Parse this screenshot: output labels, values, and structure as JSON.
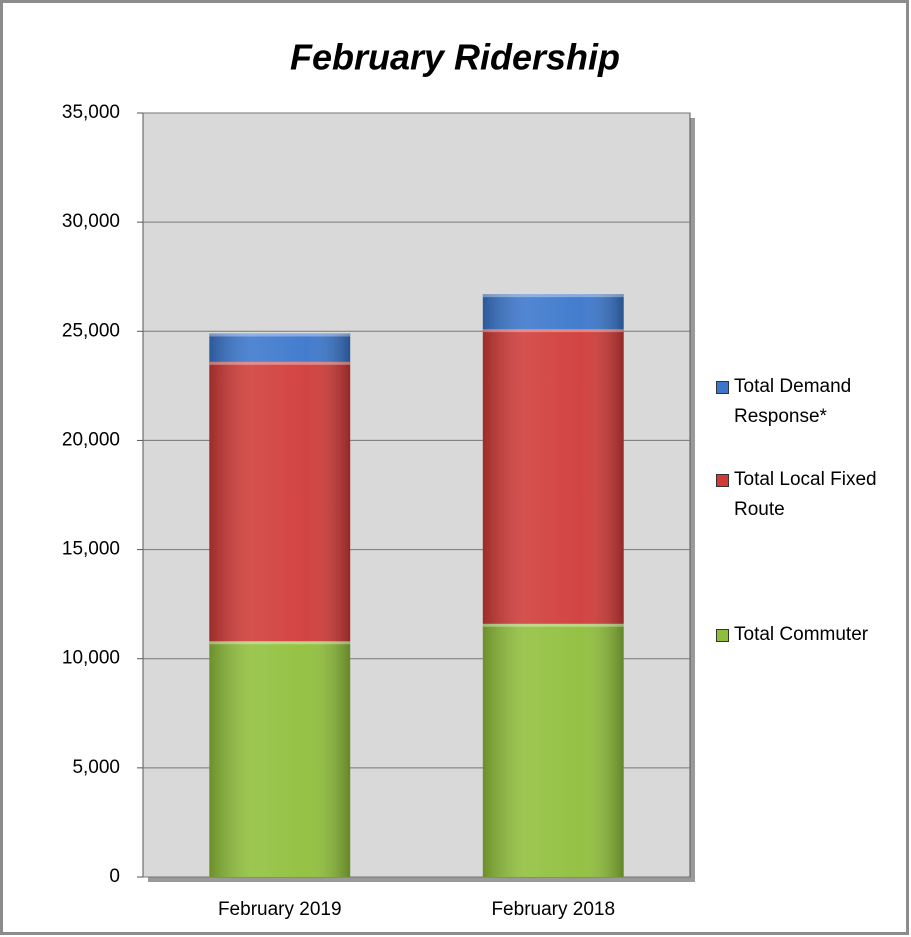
{
  "chart_data": {
    "type": "stacked_bar",
    "title": "February Ridership",
    "categories": [
      "February 2019",
      "February 2018"
    ],
    "series": [
      {
        "name": "Total Commuter",
        "color": "#8fbf3a",
        "values": [
          10800,
          11600
        ]
      },
      {
        "name": "Total Local Fixed Route",
        "color": "#d03a37",
        "values": [
          12800,
          13500
        ]
      },
      {
        "name": "Total Demand Response*",
        "color": "#3a76cc",
        "values": [
          1300,
          1600
        ]
      }
    ],
    "ylim": [
      0,
      35000
    ],
    "yticks": [
      0,
      {
        "value": 5000,
        "label": "5,000"
      },
      {
        "value": 10000,
        "label": "10,000"
      },
      {
        "value": 15000,
        "label": "15,000"
      },
      {
        "value": 20000,
        "label": "20,000"
      },
      {
        "value": 25000,
        "label": "25,000"
      },
      {
        "value": 30000,
        "label": "30,000"
      },
      {
        "value": 35000,
        "label": "35,000"
      }
    ],
    "grid": true,
    "legend": "right"
  }
}
